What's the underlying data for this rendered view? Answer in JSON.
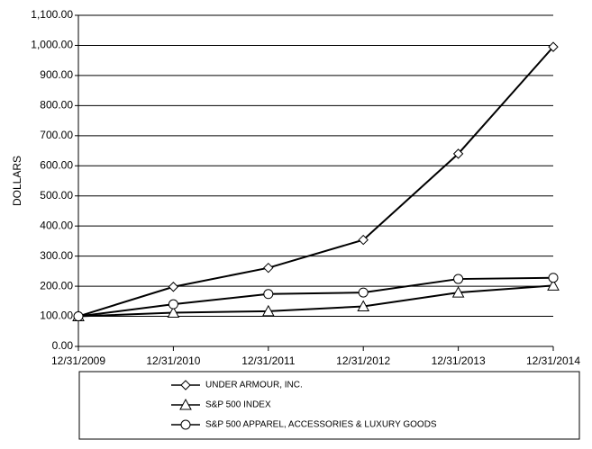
{
  "chart_data": {
    "type": "line",
    "y_label": "DOLLARS",
    "categories": [
      "12/31/2009",
      "12/31/2010",
      "12/31/2011",
      "12/31/2012",
      "12/31/2013",
      "12/31/2014"
    ],
    "series": [
      {
        "name": "UNDER ARMOUR, INC.",
        "color": "#000000",
        "marker": "diamond",
        "values": [
          100,
          198,
          261,
          354,
          640,
          995
        ]
      },
      {
        "name": "S&P 500 INDEX",
        "color": "#000000",
        "marker": "triangle",
        "values": [
          100,
          112,
          117,
          133,
          179,
          202
        ]
      },
      {
        "name": "S&P 500 APPAREL, ACCESSORIES & LUXURY GOODS",
        "color": "#000000",
        "marker": "circle",
        "values": [
          100,
          140,
          174,
          179,
          224,
          228
        ]
      }
    ],
    "ylim": [
      0,
      1100
    ],
    "yticks": [
      {
        "value": 0,
        "label": "0.00"
      },
      {
        "value": 100,
        "label": "100.00"
      },
      {
        "value": 200,
        "label": "200.00"
      },
      {
        "value": 300,
        "label": "300.00"
      },
      {
        "value": 400,
        "label": "400.00"
      },
      {
        "value": 500,
        "label": "500.00"
      },
      {
        "value": 600,
        "label": "600.00"
      },
      {
        "value": 700,
        "label": "700.00"
      },
      {
        "value": 800,
        "label": "800.00"
      },
      {
        "value": 900,
        "label": "900.00"
      },
      {
        "value": 1000,
        "label": "1,000.00"
      },
      {
        "value": 1100,
        "label": "1,100.00"
      }
    ],
    "grid": true
  }
}
